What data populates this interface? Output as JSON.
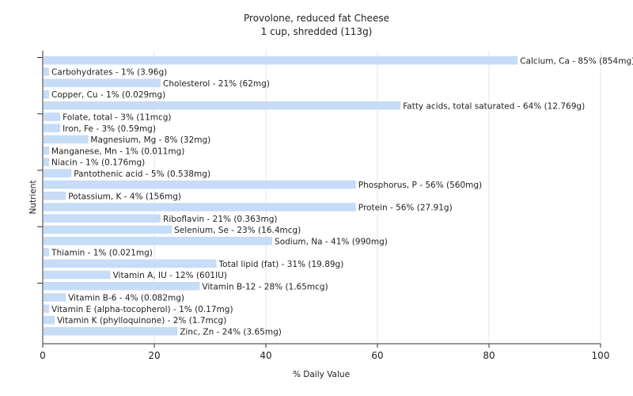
{
  "chart_data": {
    "type": "bar",
    "orientation": "horizontal",
    "title": "Provolone, reduced fat Cheese",
    "subtitle": "1 cup, shredded (113g)",
    "xlabel": "% Daily Value",
    "ylabel": "Nutrient",
    "xlim": [
      0,
      100
    ],
    "xticks": [
      "0",
      "20",
      "40",
      "60",
      "80",
      "100"
    ],
    "grid": true,
    "bar_color": "#c6dcf7",
    "categories": [
      "Calcium, Ca",
      "Carbohydrates",
      "Cholesterol",
      "Copper, Cu",
      "Fatty acids, total saturated",
      "Folate, total",
      "Iron, Fe",
      "Magnesium, Mg",
      "Manganese, Mn",
      "Niacin",
      "Pantothenic acid",
      "Phosphorus, P",
      "Potassium, K",
      "Protein",
      "Riboflavin",
      "Selenium, Se",
      "Sodium, Na",
      "Thiamin",
      "Total lipid (fat)",
      "Vitamin A, IU",
      "Vitamin B-12",
      "Vitamin B-6",
      "Vitamin E (alpha-tocopherol)",
      "Vitamin K (phylloquinone)",
      "Zinc, Zn"
    ],
    "values": [
      85,
      1,
      21,
      1,
      64,
      3,
      3,
      8,
      1,
      1,
      5,
      56,
      4,
      56,
      21,
      23,
      41,
      1,
      31,
      12,
      28,
      4,
      1,
      2,
      24
    ],
    "labels": [
      "Calcium, Ca - 85% (854mg)",
      "Carbohydrates - 1% (3.96g)",
      "Cholesterol - 21% (62mg)",
      "Copper, Cu - 1% (0.029mg)",
      "Fatty acids, total saturated - 64% (12.769g)",
      "Folate, total - 3% (11mcg)",
      "Iron, Fe - 3% (0.59mg)",
      "Magnesium, Mg - 8% (32mg)",
      "Manganese, Mn - 1% (0.011mg)",
      "Niacin - 1% (0.176mg)",
      "Pantothenic acid - 5% (0.538mg)",
      "Phosphorus, P - 56% (560mg)",
      "Potassium, K - 4% (156mg)",
      "Protein - 56% (27.91g)",
      "Riboflavin - 21% (0.363mg)",
      "Selenium, Se - 23% (16.4mcg)",
      "Sodium, Na - 41% (990mg)",
      "Thiamin - 1% (0.021mg)",
      "Total lipid (fat) - 31% (19.89g)",
      "Vitamin A, IU - 12% (601IU)",
      "Vitamin B-12 - 28% (1.65mcg)",
      "Vitamin B-6 - 4% (0.082mg)",
      "Vitamin E (alpha-tocopherol) - 1% (0.17mg)",
      "Vitamin K (phylloquinone) - 2% (1.7mcg)",
      "Zinc, Zn - 24% (3.65mg)"
    ]
  }
}
